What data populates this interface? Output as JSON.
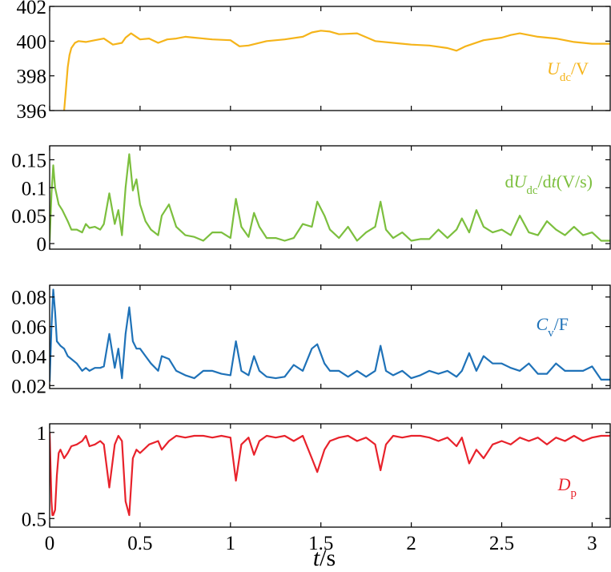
{
  "chart_data": [
    {
      "type": "line",
      "label_parts": [
        {
          "t": "U",
          "i": true
        },
        {
          "t": "dc",
          "sub": true
        },
        {
          "t": "/V"
        }
      ],
      "color": "#F5B41A",
      "ylim": [
        396,
        402
      ],
      "yticks": [
        396,
        398,
        400,
        402
      ],
      "ytick_labels": [
        "396",
        "398",
        "400",
        "402"
      ],
      "xlim": [
        0,
        3.1
      ],
      "x": [
        0.08,
        0.09,
        0.1,
        0.11,
        0.12,
        0.14,
        0.16,
        0.2,
        0.25,
        0.3,
        0.35,
        0.4,
        0.42,
        0.45,
        0.5,
        0.55,
        0.6,
        0.65,
        0.7,
        0.75,
        0.8,
        0.9,
        1.0,
        1.05,
        1.1,
        1.2,
        1.3,
        1.4,
        1.45,
        1.5,
        1.55,
        1.6,
        1.7,
        1.8,
        1.9,
        2.0,
        2.1,
        2.2,
        2.25,
        2.3,
        2.4,
        2.5,
        2.55,
        2.6,
        2.7,
        2.8,
        2.9,
        3.0,
        3.1
      ],
      "values": [
        396.0,
        397.2,
        398.5,
        399.2,
        399.6,
        399.9,
        400.0,
        399.95,
        400.05,
        400.15,
        399.8,
        399.9,
        400.2,
        400.45,
        400.1,
        400.15,
        399.9,
        400.1,
        400.15,
        400.25,
        400.2,
        400.1,
        400.05,
        399.7,
        399.75,
        400.0,
        400.1,
        400.25,
        400.5,
        400.6,
        400.55,
        400.4,
        400.45,
        400.0,
        399.9,
        399.8,
        399.75,
        399.6,
        399.45,
        399.7,
        400.05,
        400.2,
        400.35,
        400.45,
        400.25,
        400.15,
        399.95,
        399.85,
        399.85
      ]
    },
    {
      "type": "line",
      "label_parts": [
        {
          "t": "d"
        },
        {
          "t": "U",
          "i": true
        },
        {
          "t": "dc",
          "sub": true
        },
        {
          "t": "/d"
        },
        {
          "t": "t",
          "i": true
        },
        {
          "t": "(V/s)"
        }
      ],
      "color": "#7CBF3E",
      "ylim": [
        -0.01,
        0.175
      ],
      "yticks": [
        0,
        0.05,
        0.1,
        0.15
      ],
      "ytick_labels": [
        "0",
        "0.05",
        "0.1",
        "0.15"
      ],
      "xlim": [
        0,
        3.1
      ],
      "x": [
        0.0,
        0.01,
        0.02,
        0.03,
        0.05,
        0.07,
        0.1,
        0.12,
        0.15,
        0.18,
        0.2,
        0.22,
        0.25,
        0.28,
        0.3,
        0.33,
        0.36,
        0.38,
        0.4,
        0.42,
        0.44,
        0.46,
        0.48,
        0.5,
        0.53,
        0.56,
        0.6,
        0.62,
        0.66,
        0.7,
        0.75,
        0.8,
        0.85,
        0.9,
        0.95,
        1.0,
        1.03,
        1.06,
        1.1,
        1.13,
        1.16,
        1.2,
        1.25,
        1.3,
        1.35,
        1.4,
        1.45,
        1.48,
        1.52,
        1.55,
        1.6,
        1.65,
        1.7,
        1.75,
        1.8,
        1.83,
        1.86,
        1.9,
        1.95,
        2.0,
        2.05,
        2.1,
        2.15,
        2.2,
        2.25,
        2.28,
        2.32,
        2.36,
        2.4,
        2.45,
        2.5,
        2.55,
        2.6,
        2.65,
        2.7,
        2.75,
        2.8,
        2.85,
        2.9,
        2.95,
        3.0,
        3.05,
        3.1
      ],
      "values": [
        0.005,
        0.09,
        0.14,
        0.1,
        0.07,
        0.06,
        0.04,
        0.025,
        0.025,
        0.02,
        0.035,
        0.028,
        0.03,
        0.025,
        0.035,
        0.09,
        0.035,
        0.06,
        0.015,
        0.1,
        0.16,
        0.095,
        0.115,
        0.07,
        0.04,
        0.025,
        0.015,
        0.05,
        0.07,
        0.03,
        0.015,
        0.012,
        0.005,
        0.02,
        0.02,
        0.01,
        0.08,
        0.03,
        0.012,
        0.055,
        0.03,
        0.01,
        0.01,
        0.005,
        0.01,
        0.035,
        0.03,
        0.075,
        0.05,
        0.025,
        0.01,
        0.03,
        0.005,
        0.02,
        0.03,
        0.075,
        0.025,
        0.01,
        0.02,
        0.005,
        0.008,
        0.008,
        0.025,
        0.01,
        0.025,
        0.045,
        0.02,
        0.06,
        0.03,
        0.02,
        0.025,
        0.015,
        0.05,
        0.02,
        0.015,
        0.04,
        0.025,
        0.015,
        0.03,
        0.015,
        0.02,
        0.005,
        0.005
      ]
    },
    {
      "type": "line",
      "label_parts": [
        {
          "t": "C",
          "i": true
        },
        {
          "t": "v",
          "sub": true
        },
        {
          "t": "/F"
        }
      ],
      "color": "#1F72B8",
      "ylim": [
        0.018,
        0.088
      ],
      "yticks": [
        0.02,
        0.04,
        0.06,
        0.08
      ],
      "ytick_labels": [
        "0.02",
        "0.04",
        "0.06",
        "0.08"
      ],
      "xlim": [
        0,
        3.1
      ],
      "x": [
        0.0,
        0.01,
        0.02,
        0.03,
        0.04,
        0.06,
        0.08,
        0.1,
        0.12,
        0.15,
        0.18,
        0.2,
        0.22,
        0.25,
        0.28,
        0.3,
        0.33,
        0.36,
        0.38,
        0.4,
        0.42,
        0.44,
        0.46,
        0.48,
        0.5,
        0.53,
        0.56,
        0.6,
        0.62,
        0.66,
        0.7,
        0.75,
        0.8,
        0.85,
        0.9,
        0.95,
        1.0,
        1.03,
        1.06,
        1.1,
        1.13,
        1.16,
        1.2,
        1.25,
        1.3,
        1.35,
        1.4,
        1.45,
        1.48,
        1.52,
        1.55,
        1.6,
        1.65,
        1.7,
        1.75,
        1.8,
        1.83,
        1.86,
        1.9,
        1.95,
        2.0,
        2.05,
        2.1,
        2.15,
        2.2,
        2.25,
        2.28,
        2.32,
        2.36,
        2.4,
        2.45,
        2.5,
        2.55,
        2.6,
        2.65,
        2.7,
        2.75,
        2.8,
        2.85,
        2.9,
        2.95,
        3.0,
        3.05,
        3.1
      ],
      "values": [
        0.023,
        0.06,
        0.085,
        0.07,
        0.05,
        0.047,
        0.045,
        0.04,
        0.038,
        0.035,
        0.03,
        0.032,
        0.03,
        0.032,
        0.032,
        0.033,
        0.055,
        0.032,
        0.045,
        0.025,
        0.055,
        0.073,
        0.05,
        0.045,
        0.045,
        0.04,
        0.035,
        0.03,
        0.04,
        0.038,
        0.03,
        0.027,
        0.025,
        0.03,
        0.03,
        0.028,
        0.027,
        0.05,
        0.03,
        0.027,
        0.04,
        0.03,
        0.026,
        0.025,
        0.026,
        0.034,
        0.03,
        0.045,
        0.048,
        0.035,
        0.03,
        0.03,
        0.026,
        0.03,
        0.026,
        0.03,
        0.047,
        0.03,
        0.027,
        0.03,
        0.025,
        0.027,
        0.03,
        0.028,
        0.03,
        0.026,
        0.03,
        0.042,
        0.03,
        0.04,
        0.035,
        0.035,
        0.032,
        0.03,
        0.035,
        0.028,
        0.028,
        0.035,
        0.03,
        0.03,
        0.03,
        0.033,
        0.024,
        0.024
      ]
    },
    {
      "type": "line",
      "label_parts": [
        {
          "t": "D",
          "i": true
        },
        {
          "t": "p",
          "sub": true
        }
      ],
      "color": "#E8222B",
      "ylim": [
        0.45,
        1.05
      ],
      "yticks": [
        0.5,
        1.0
      ],
      "ytick_labels": [
        "0.5",
        "1"
      ],
      "xlim": [
        0,
        3.1
      ],
      "x": [
        0.0,
        0.01,
        0.015,
        0.02,
        0.03,
        0.04,
        0.05,
        0.06,
        0.08,
        0.1,
        0.12,
        0.15,
        0.18,
        0.2,
        0.22,
        0.25,
        0.28,
        0.3,
        0.33,
        0.36,
        0.38,
        0.4,
        0.42,
        0.44,
        0.46,
        0.48,
        0.5,
        0.55,
        0.6,
        0.62,
        0.66,
        0.7,
        0.75,
        0.8,
        0.85,
        0.9,
        0.95,
        1.0,
        1.03,
        1.06,
        1.1,
        1.13,
        1.16,
        1.2,
        1.25,
        1.3,
        1.35,
        1.4,
        1.45,
        1.48,
        1.52,
        1.55,
        1.6,
        1.65,
        1.7,
        1.75,
        1.8,
        1.83,
        1.86,
        1.9,
        1.95,
        2.0,
        2.05,
        2.1,
        2.15,
        2.2,
        2.25,
        2.28,
        2.32,
        2.36,
        2.4,
        2.45,
        2.5,
        2.55,
        2.6,
        2.65,
        2.7,
        2.75,
        2.8,
        2.85,
        2.9,
        2.95,
        3.0,
        3.05,
        3.1
      ],
      "values": [
        1.0,
        0.6,
        0.52,
        0.52,
        0.55,
        0.75,
        0.88,
        0.9,
        0.85,
        0.88,
        0.92,
        0.93,
        0.95,
        0.98,
        0.92,
        0.93,
        0.95,
        0.93,
        0.68,
        0.93,
        0.98,
        0.95,
        0.6,
        0.52,
        0.85,
        0.9,
        0.88,
        0.93,
        0.95,
        0.9,
        0.95,
        0.98,
        0.97,
        0.98,
        0.98,
        0.97,
        0.98,
        0.97,
        0.72,
        0.93,
        0.97,
        0.87,
        0.95,
        0.98,
        0.97,
        0.98,
        0.95,
        0.98,
        0.85,
        0.77,
        0.9,
        0.95,
        0.97,
        0.98,
        0.95,
        0.97,
        0.93,
        0.78,
        0.93,
        0.98,
        0.97,
        0.98,
        0.98,
        0.97,
        0.95,
        0.97,
        0.92,
        0.97,
        0.82,
        0.9,
        0.85,
        0.93,
        0.95,
        0.93,
        0.97,
        0.95,
        0.97,
        0.93,
        0.97,
        0.95,
        0.98,
        0.95,
        0.97,
        0.98,
        0.98
      ]
    }
  ],
  "x_axis": {
    "ticks": [
      0,
      0.5,
      1,
      1.5,
      2,
      2.5,
      3
    ],
    "tick_labels": [
      "0",
      "0.5",
      "1",
      "1.5",
      "2",
      "2.5",
      "3"
    ],
    "label_italic": "t",
    "label_rest": "/s"
  }
}
